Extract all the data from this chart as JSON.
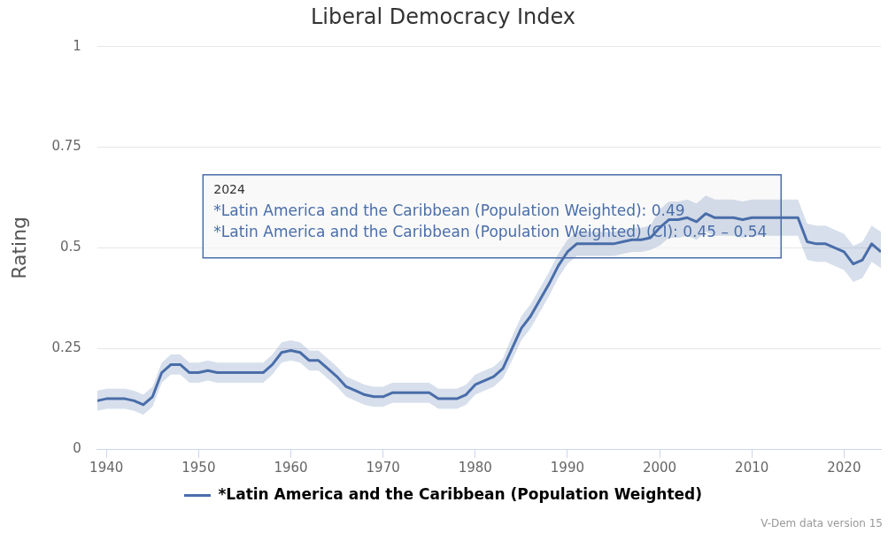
{
  "chart_data": {
    "type": "line",
    "title": "Liberal Democracy Index",
    "ylabel": "Rating",
    "x": [
      1939,
      1940,
      1941,
      1942,
      1943,
      1944,
      1945,
      1946,
      1947,
      1948,
      1949,
      1950,
      1951,
      1952,
      1953,
      1954,
      1955,
      1956,
      1957,
      1958,
      1959,
      1960,
      1961,
      1962,
      1963,
      1964,
      1965,
      1966,
      1967,
      1968,
      1969,
      1970,
      1971,
      1972,
      1973,
      1974,
      1975,
      1976,
      1977,
      1978,
      1979,
      1980,
      1981,
      1982,
      1983,
      1984,
      1985,
      1986,
      1987,
      1988,
      1989,
      1990,
      1991,
      1992,
      1993,
      1994,
      1995,
      1996,
      1997,
      1998,
      1999,
      2000,
      2001,
      2002,
      2003,
      2004,
      2005,
      2006,
      2007,
      2008,
      2009,
      2010,
      2011,
      2012,
      2013,
      2014,
      2015,
      2016,
      2017,
      2018,
      2019,
      2020,
      2021,
      2022,
      2023,
      2024
    ],
    "series": [
      {
        "name": "*Latin America and the Caribbean (Population Weighted)",
        "color": "#4a6ea9",
        "values": [
          0.12,
          0.125,
          0.125,
          0.125,
          0.12,
          0.11,
          0.13,
          0.19,
          0.21,
          0.21,
          0.19,
          0.19,
          0.195,
          0.19,
          0.19,
          0.19,
          0.19,
          0.19,
          0.19,
          0.21,
          0.24,
          0.245,
          0.24,
          0.22,
          0.22,
          0.2,
          0.18,
          0.155,
          0.145,
          0.135,
          0.13,
          0.13,
          0.14,
          0.14,
          0.14,
          0.14,
          0.14,
          0.125,
          0.125,
          0.125,
          0.135,
          0.16,
          0.17,
          0.18,
          0.2,
          0.25,
          0.3,
          0.33,
          0.37,
          0.41,
          0.455,
          0.49,
          0.51,
          0.51,
          0.51,
          0.51,
          0.51,
          0.515,
          0.52,
          0.52,
          0.525,
          0.55,
          0.57,
          0.57,
          0.575,
          0.565,
          0.585,
          0.575,
          0.575,
          0.575,
          0.57,
          0.575,
          0.575,
          0.575,
          0.575,
          0.575,
          0.575,
          0.515,
          0.51,
          0.51,
          0.5,
          0.49,
          0.46,
          0.47,
          0.51,
          0.49
        ],
        "lower": [
          0.095,
          0.1,
          0.1,
          0.1,
          0.095,
          0.085,
          0.105,
          0.165,
          0.185,
          0.185,
          0.165,
          0.165,
          0.17,
          0.165,
          0.165,
          0.165,
          0.165,
          0.165,
          0.165,
          0.185,
          0.215,
          0.22,
          0.215,
          0.195,
          0.195,
          0.175,
          0.155,
          0.13,
          0.12,
          0.11,
          0.105,
          0.105,
          0.115,
          0.115,
          0.115,
          0.115,
          0.115,
          0.1,
          0.1,
          0.1,
          0.11,
          0.135,
          0.145,
          0.155,
          0.175,
          0.22,
          0.27,
          0.3,
          0.34,
          0.38,
          0.425,
          0.46,
          0.48,
          0.48,
          0.48,
          0.48,
          0.48,
          0.485,
          0.49,
          0.49,
          0.495,
          0.505,
          0.525,
          0.525,
          0.53,
          0.52,
          0.54,
          0.53,
          0.53,
          0.53,
          0.525,
          0.53,
          0.53,
          0.53,
          0.53,
          0.53,
          0.53,
          0.47,
          0.465,
          0.465,
          0.455,
          0.445,
          0.415,
          0.425,
          0.465,
          0.45
        ],
        "upper": [
          0.145,
          0.15,
          0.15,
          0.15,
          0.145,
          0.135,
          0.155,
          0.215,
          0.235,
          0.235,
          0.215,
          0.215,
          0.22,
          0.215,
          0.215,
          0.215,
          0.215,
          0.215,
          0.215,
          0.235,
          0.265,
          0.27,
          0.265,
          0.245,
          0.245,
          0.225,
          0.205,
          0.18,
          0.17,
          0.16,
          0.155,
          0.155,
          0.165,
          0.165,
          0.165,
          0.165,
          0.165,
          0.15,
          0.15,
          0.15,
          0.16,
          0.185,
          0.195,
          0.205,
          0.225,
          0.28,
          0.33,
          0.36,
          0.4,
          0.44,
          0.485,
          0.52,
          0.54,
          0.54,
          0.54,
          0.54,
          0.54,
          0.545,
          0.55,
          0.55,
          0.555,
          0.595,
          0.615,
          0.615,
          0.62,
          0.61,
          0.63,
          0.62,
          0.62,
          0.62,
          0.615,
          0.62,
          0.62,
          0.62,
          0.62,
          0.62,
          0.62,
          0.56,
          0.555,
          0.555,
          0.545,
          0.535,
          0.505,
          0.515,
          0.555,
          0.54
        ]
      }
    ],
    "xlim": [
      1939,
      2024
    ],
    "xticks": [
      1940,
      1950,
      1960,
      1970,
      1980,
      1990,
      2000,
      2010,
      2020
    ],
    "ylim": [
      0,
      1
    ],
    "yticks": [
      0,
      0.25,
      0.5,
      0.75,
      1
    ],
    "grid": "y",
    "legend": "bottom",
    "annotations": [
      "2024",
      "*Latin America and the Caribbean (Population Weighted): 0.49",
      "*Latin America and the Caribbean (Population Weighted) (CI): 0.45 – 0.54",
      "V-Dem data version 15"
    ]
  }
}
